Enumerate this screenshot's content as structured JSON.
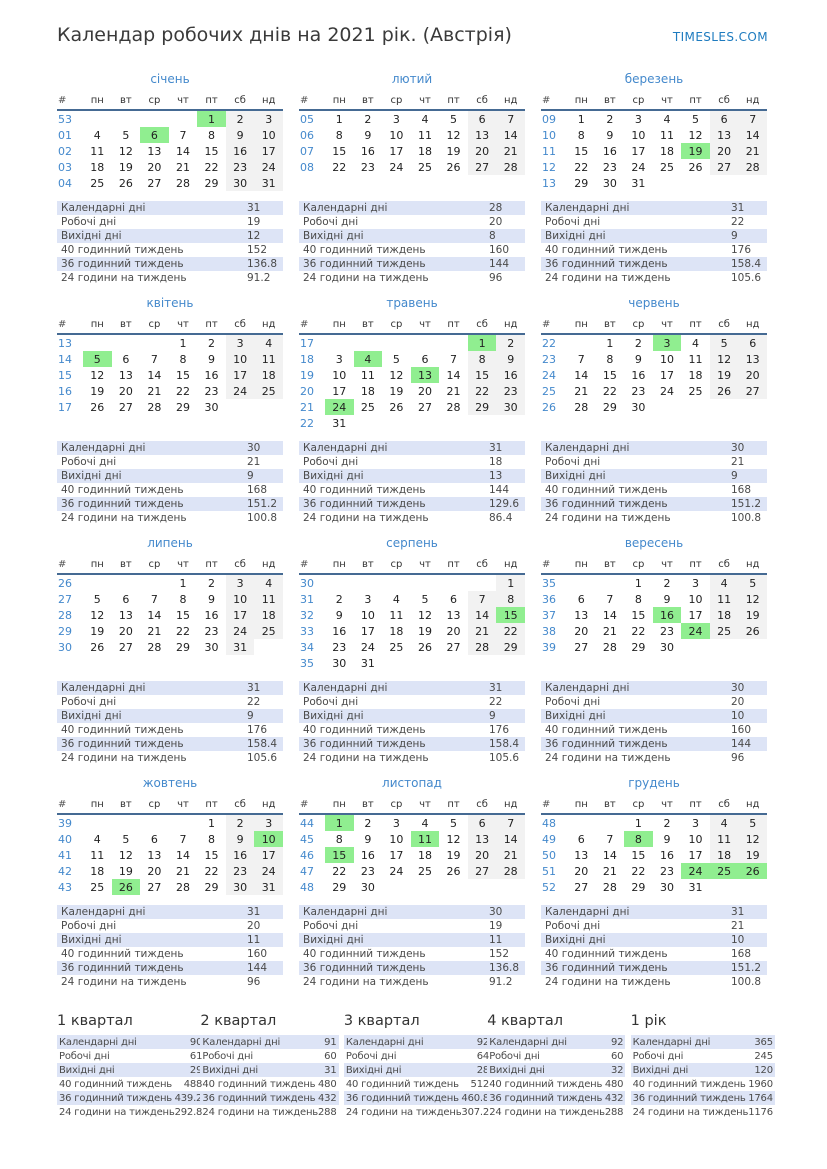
{
  "header": {
    "title": "Календар робочих днів на 2021 рік. (Австрія)",
    "brand": "TIMESLES.COM"
  },
  "colors": {
    "accent_blue": "#4489cc",
    "holiday_green": "#90ee90",
    "weekend_gray": "#f2f2f2",
    "stats_row_blue": "#dde4f6",
    "separator_blue": "#456a93",
    "brand_blue": "#1e7bbf"
  },
  "day_headers": [
    "#",
    "пн",
    "вт",
    "ср",
    "чт",
    "пт",
    "сб",
    "нд"
  ],
  "stats_labels": [
    "Календарні дні",
    "Робочі дні",
    "Вихідні дні",
    "40 годинний тиждень",
    "36 годинний тиждень",
    "24 години на тиждень"
  ],
  "months": [
    {
      "name": "січень",
      "holidays": [
        "1",
        "6"
      ],
      "weeks": [
        {
          "num": "53",
          "days": [
            "",
            "",
            "",
            "",
            "1",
            "2",
            "3"
          ]
        },
        {
          "num": "01",
          "days": [
            "4",
            "5",
            "6",
            "7",
            "8",
            "9",
            "10"
          ]
        },
        {
          "num": "02",
          "days": [
            "11",
            "12",
            "13",
            "14",
            "15",
            "16",
            "17"
          ]
        },
        {
          "num": "03",
          "days": [
            "18",
            "19",
            "20",
            "21",
            "22",
            "23",
            "24"
          ]
        },
        {
          "num": "04",
          "days": [
            "25",
            "26",
            "27",
            "28",
            "29",
            "30",
            "31"
          ]
        }
      ],
      "stats": [
        "31",
        "19",
        "12",
        "152",
        "136.8",
        "91.2"
      ]
    },
    {
      "name": "лютий",
      "holidays": [],
      "weeks": [
        {
          "num": "05",
          "days": [
            "1",
            "2",
            "3",
            "4",
            "5",
            "6",
            "7"
          ]
        },
        {
          "num": "06",
          "days": [
            "8",
            "9",
            "10",
            "11",
            "12",
            "13",
            "14"
          ]
        },
        {
          "num": "07",
          "days": [
            "15",
            "16",
            "17",
            "18",
            "19",
            "20",
            "21"
          ]
        },
        {
          "num": "08",
          "days": [
            "22",
            "23",
            "24",
            "25",
            "26",
            "27",
            "28"
          ]
        }
      ],
      "stats": [
        "28",
        "20",
        "8",
        "160",
        "144",
        "96"
      ]
    },
    {
      "name": "березень",
      "holidays": [
        "19"
      ],
      "weeks": [
        {
          "num": "09",
          "days": [
            "1",
            "2",
            "3",
            "4",
            "5",
            "6",
            "7"
          ]
        },
        {
          "num": "10",
          "days": [
            "8",
            "9",
            "10",
            "11",
            "12",
            "13",
            "14"
          ]
        },
        {
          "num": "11",
          "days": [
            "15",
            "16",
            "17",
            "18",
            "19",
            "20",
            "21"
          ]
        },
        {
          "num": "12",
          "days": [
            "22",
            "23",
            "24",
            "25",
            "26",
            "27",
            "28"
          ]
        },
        {
          "num": "13",
          "days": [
            "29",
            "30",
            "31",
            "",
            "",
            "",
            ""
          ]
        }
      ],
      "stats": [
        "31",
        "22",
        "9",
        "176",
        "158.4",
        "105.6"
      ]
    },
    {
      "name": "квітень",
      "holidays": [
        "5"
      ],
      "weeks": [
        {
          "num": "13",
          "days": [
            "",
            "",
            "",
            "1",
            "2",
            "3",
            "4"
          ]
        },
        {
          "num": "14",
          "days": [
            "5",
            "6",
            "7",
            "8",
            "9",
            "10",
            "11"
          ]
        },
        {
          "num": "15",
          "days": [
            "12",
            "13",
            "14",
            "15",
            "16",
            "17",
            "18"
          ]
        },
        {
          "num": "16",
          "days": [
            "19",
            "20",
            "21",
            "22",
            "23",
            "24",
            "25"
          ]
        },
        {
          "num": "17",
          "days": [
            "26",
            "27",
            "28",
            "29",
            "30",
            "",
            ""
          ]
        }
      ],
      "stats": [
        "30",
        "21",
        "9",
        "168",
        "151.2",
        "100.8"
      ]
    },
    {
      "name": "травень",
      "holidays": [
        "1",
        "4",
        "13",
        "24"
      ],
      "weeks": [
        {
          "num": "17",
          "days": [
            "",
            "",
            "",
            "",
            "",
            "1",
            "2"
          ]
        },
        {
          "num": "18",
          "days": [
            "3",
            "4",
            "5",
            "6",
            "7",
            "8",
            "9"
          ]
        },
        {
          "num": "19",
          "days": [
            "10",
            "11",
            "12",
            "13",
            "14",
            "15",
            "16"
          ]
        },
        {
          "num": "20",
          "days": [
            "17",
            "18",
            "19",
            "20",
            "21",
            "22",
            "23"
          ]
        },
        {
          "num": "21",
          "days": [
            "24",
            "25",
            "26",
            "27",
            "28",
            "29",
            "30"
          ]
        },
        {
          "num": "22",
          "days": [
            "31",
            "",
            "",
            "",
            "",
            "",
            ""
          ]
        }
      ],
      "stats": [
        "31",
        "18",
        "13",
        "144",
        "129.6",
        "86.4"
      ]
    },
    {
      "name": "червень",
      "holidays": [
        "3"
      ],
      "weeks": [
        {
          "num": "22",
          "days": [
            "",
            "1",
            "2",
            "3",
            "4",
            "5",
            "6"
          ]
        },
        {
          "num": "23",
          "days": [
            "7",
            "8",
            "9",
            "10",
            "11",
            "12",
            "13"
          ]
        },
        {
          "num": "24",
          "days": [
            "14",
            "15",
            "16",
            "17",
            "18",
            "19",
            "20"
          ]
        },
        {
          "num": "25",
          "days": [
            "21",
            "22",
            "23",
            "24",
            "25",
            "26",
            "27"
          ]
        },
        {
          "num": "26",
          "days": [
            "28",
            "29",
            "30",
            "",
            "",
            "",
            ""
          ]
        }
      ],
      "stats": [
        "30",
        "21",
        "9",
        "168",
        "151.2",
        "100.8"
      ]
    },
    {
      "name": "липень",
      "holidays": [],
      "weeks": [
        {
          "num": "26",
          "days": [
            "",
            "",
            "",
            "1",
            "2",
            "3",
            "4"
          ]
        },
        {
          "num": "27",
          "days": [
            "5",
            "6",
            "7",
            "8",
            "9",
            "10",
            "11"
          ]
        },
        {
          "num": "28",
          "days": [
            "12",
            "13",
            "14",
            "15",
            "16",
            "17",
            "18"
          ]
        },
        {
          "num": "29",
          "days": [
            "19",
            "20",
            "21",
            "22",
            "23",
            "24",
            "25"
          ]
        },
        {
          "num": "30",
          "days": [
            "26",
            "27",
            "28",
            "29",
            "30",
            "31",
            ""
          ]
        }
      ],
      "stats": [
        "31",
        "22",
        "9",
        "176",
        "158.4",
        "105.6"
      ]
    },
    {
      "name": "серпень",
      "holidays": [
        "15"
      ],
      "weeks": [
        {
          "num": "30",
          "days": [
            "",
            "",
            "",
            "",
            "",
            "",
            "1"
          ]
        },
        {
          "num": "31",
          "days": [
            "2",
            "3",
            "4",
            "5",
            "6",
            "7",
            "8"
          ]
        },
        {
          "num": "32",
          "days": [
            "9",
            "10",
            "11",
            "12",
            "13",
            "14",
            "15"
          ]
        },
        {
          "num": "33",
          "days": [
            "16",
            "17",
            "18",
            "19",
            "20",
            "21",
            "22"
          ]
        },
        {
          "num": "34",
          "days": [
            "23",
            "24",
            "25",
            "26",
            "27",
            "28",
            "29"
          ]
        },
        {
          "num": "35",
          "days": [
            "30",
            "31",
            "",
            "",
            "",
            "",
            ""
          ]
        }
      ],
      "stats": [
        "31",
        "22",
        "9",
        "176",
        "158.4",
        "105.6"
      ]
    },
    {
      "name": "вересень",
      "holidays": [
        "16",
        "24"
      ],
      "weeks": [
        {
          "num": "35",
          "days": [
            "",
            "",
            "1",
            "2",
            "3",
            "4",
            "5"
          ]
        },
        {
          "num": "36",
          "days": [
            "6",
            "7",
            "8",
            "9",
            "10",
            "11",
            "12"
          ]
        },
        {
          "num": "37",
          "days": [
            "13",
            "14",
            "15",
            "16",
            "17",
            "18",
            "19"
          ]
        },
        {
          "num": "38",
          "days": [
            "20",
            "21",
            "22",
            "23",
            "24",
            "25",
            "26"
          ]
        },
        {
          "num": "39",
          "days": [
            "27",
            "28",
            "29",
            "30",
            "",
            "",
            ""
          ]
        }
      ],
      "stats": [
        "30",
        "20",
        "10",
        "160",
        "144",
        "96"
      ]
    },
    {
      "name": "жовтень",
      "holidays": [
        "10",
        "26"
      ],
      "weeks": [
        {
          "num": "39",
          "days": [
            "",
            "",
            "",
            "",
            "1",
            "2",
            "3"
          ]
        },
        {
          "num": "40",
          "days": [
            "4",
            "5",
            "6",
            "7",
            "8",
            "9",
            "10"
          ]
        },
        {
          "num": "41",
          "days": [
            "11",
            "12",
            "13",
            "14",
            "15",
            "16",
            "17"
          ]
        },
        {
          "num": "42",
          "days": [
            "18",
            "19",
            "20",
            "21",
            "22",
            "23",
            "24"
          ]
        },
        {
          "num": "43",
          "days": [
            "25",
            "26",
            "27",
            "28",
            "29",
            "30",
            "31"
          ]
        }
      ],
      "stats": [
        "31",
        "20",
        "11",
        "160",
        "144",
        "96"
      ]
    },
    {
      "name": "листопад",
      "holidays": [
        "1",
        "11",
        "15"
      ],
      "weeks": [
        {
          "num": "44",
          "days": [
            "1",
            "2",
            "3",
            "4",
            "5",
            "6",
            "7"
          ]
        },
        {
          "num": "45",
          "days": [
            "8",
            "9",
            "10",
            "11",
            "12",
            "13",
            "14"
          ]
        },
        {
          "num": "46",
          "days": [
            "15",
            "16",
            "17",
            "18",
            "19",
            "20",
            "21"
          ]
        },
        {
          "num": "47",
          "days": [
            "22",
            "23",
            "24",
            "25",
            "26",
            "27",
            "28"
          ]
        },
        {
          "num": "48",
          "days": [
            "29",
            "30",
            "",
            "",
            "",
            "",
            ""
          ]
        }
      ],
      "stats": [
        "30",
        "19",
        "11",
        "152",
        "136.8",
        "91.2"
      ]
    },
    {
      "name": "грудень",
      "holidays": [
        "8",
        "24",
        "25",
        "26"
      ],
      "weeks": [
        {
          "num": "48",
          "days": [
            "",
            "",
            "1",
            "2",
            "3",
            "4",
            "5"
          ]
        },
        {
          "num": "49",
          "days": [
            "6",
            "7",
            "8",
            "9",
            "10",
            "11",
            "12"
          ]
        },
        {
          "num": "50",
          "days": [
            "13",
            "14",
            "15",
            "16",
            "17",
            "18",
            "19"
          ]
        },
        {
          "num": "51",
          "days": [
            "20",
            "21",
            "22",
            "23",
            "24",
            "25",
            "26"
          ]
        },
        {
          "num": "52",
          "days": [
            "27",
            "28",
            "29",
            "30",
            "31",
            "",
            ""
          ]
        }
      ],
      "stats": [
        "31",
        "21",
        "10",
        "168",
        "151.2",
        "100.8"
      ]
    }
  ],
  "summaries": [
    {
      "title": "1 квартал",
      "stats": [
        "90",
        "61",
        "29",
        "488",
        "439.2",
        "292.8"
      ]
    },
    {
      "title": "2 квартал",
      "stats": [
        "91",
        "60",
        "31",
        "480",
        "432",
        "288"
      ]
    },
    {
      "title": "3 квартал",
      "stats": [
        "92",
        "64",
        "28",
        "512",
        "460.8",
        "307.2"
      ]
    },
    {
      "title": "4 квартал",
      "stats": [
        "92",
        "60",
        "32",
        "480",
        "432",
        "288"
      ]
    },
    {
      "title": "1 рік",
      "stats": [
        "365",
        "245",
        "120",
        "1960",
        "1764",
        "1176"
      ]
    }
  ]
}
